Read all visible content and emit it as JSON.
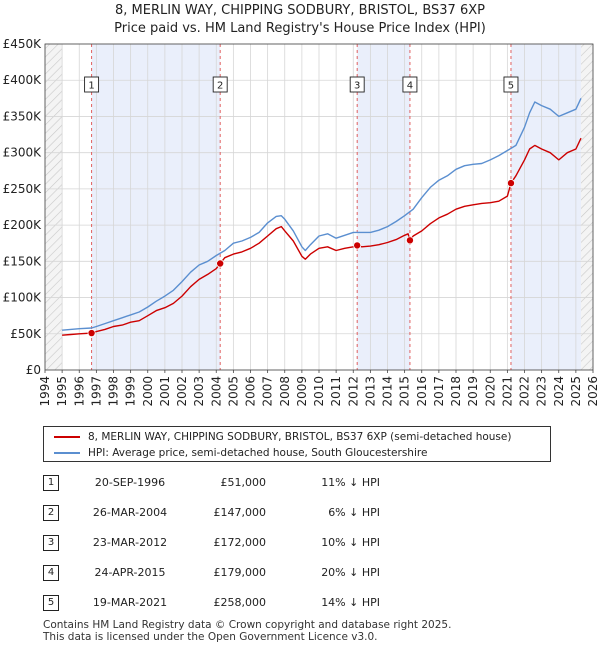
{
  "header": {
    "title": "8, MERLIN WAY, CHIPPING SODBURY, BRISTOL, BS37 6XP",
    "subtitle": "Price paid vs. HM Land Registry's House Price Index (HPI)"
  },
  "chart_data": {
    "type": "line",
    "title": "8, MERLIN WAY, CHIPPING SODBURY, BRISTOL, BS37 6XP",
    "subtitle": "Price paid vs. HM Land Registry's House Price Index (HPI)",
    "xlabel": "",
    "ylabel": "",
    "xlim": [
      1994,
      2026
    ],
    "ylim": [
      0,
      450000
    ],
    "x_ticks": [
      "1994",
      "1995",
      "1996",
      "1997",
      "1998",
      "1999",
      "2000",
      "2001",
      "2002",
      "2003",
      "2004",
      "2005",
      "2006",
      "2007",
      "2008",
      "2009",
      "2010",
      "2011",
      "2012",
      "2013",
      "2014",
      "2015",
      "2016",
      "2017",
      "2018",
      "2019",
      "2020",
      "2021",
      "2022",
      "2023",
      "2024",
      "2025",
      "2026"
    ],
    "y_ticks": [
      {
        "value": 0,
        "label": "£0"
      },
      {
        "value": 50000,
        "label": "£50K"
      },
      {
        "value": 100000,
        "label": "£100K"
      },
      {
        "value": 150000,
        "label": "£150K"
      },
      {
        "value": 200000,
        "label": "£200K"
      },
      {
        "value": 250000,
        "label": "£250K"
      },
      {
        "value": 300000,
        "label": "£300K"
      },
      {
        "value": 350000,
        "label": "£350K"
      },
      {
        "value": 400000,
        "label": "£400K"
      },
      {
        "value": 450000,
        "label": "£450K"
      }
    ],
    "grid": true,
    "data_range": [
      1995,
      2025.3
    ],
    "series": [
      {
        "name": "8, MERLIN WAY, CHIPPING SODBURY, BRISTOL, BS37 6XP (semi-detached house)",
        "color": "#cc0000",
        "x": [
          1995.0,
          1995.5,
          1996.0,
          1996.72,
          1997.0,
          1997.5,
          1998.0,
          1998.5,
          1999.0,
          1999.5,
          2000.0,
          2000.5,
          2001.0,
          2001.5,
          2002.0,
          2002.5,
          2003.0,
          2003.5,
          2004.0,
          2004.23,
          2004.5,
          2005.0,
          2005.5,
          2006.0,
          2006.5,
          2007.0,
          2007.5,
          2007.8,
          2008.0,
          2008.5,
          2009.0,
          2009.2,
          2009.5,
          2010.0,
          2010.5,
          2011.0,
          2011.5,
          2012.0,
          2012.23,
          2012.5,
          2013.0,
          2013.5,
          2014.0,
          2014.5,
          2015.0,
          2015.2,
          2015.31,
          2015.5,
          2016.0,
          2016.5,
          2017.0,
          2017.5,
          2018.0,
          2018.5,
          2019.0,
          2019.5,
          2020.0,
          2020.5,
          2021.0,
          2021.21,
          2021.5,
          2022.0,
          2022.3,
          2022.6,
          2023.0,
          2023.5,
          2024.0,
          2024.5,
          2025.0,
          2025.3
        ],
        "values": [
          48000,
          49000,
          50000,
          51000,
          53000,
          56000,
          60000,
          62000,
          66000,
          68000,
          75000,
          82000,
          86000,
          92000,
          102000,
          115000,
          125000,
          132000,
          140000,
          147000,
          155000,
          160000,
          163000,
          168000,
          175000,
          185000,
          195000,
          198000,
          192000,
          178000,
          157000,
          153000,
          160000,
          168000,
          170000,
          165000,
          168000,
          170000,
          172000,
          170000,
          171000,
          173000,
          176000,
          180000,
          186000,
          188000,
          179000,
          185000,
          192000,
          202000,
          210000,
          215000,
          222000,
          226000,
          228000,
          230000,
          231000,
          233000,
          240000,
          258000,
          268000,
          290000,
          305000,
          310000,
          305000,
          300000,
          290000,
          300000,
          305000,
          320000
        ]
      },
      {
        "name": "HPI: Average price, semi-detached house, South Gloucestershire",
        "color": "#5b8fd0",
        "x": [
          1995.0,
          1995.5,
          1996.0,
          1996.72,
          1997.0,
          1997.5,
          1998.0,
          1998.5,
          1999.0,
          1999.5,
          2000.0,
          2000.5,
          2001.0,
          2001.5,
          2002.0,
          2002.5,
          2003.0,
          2003.5,
          2004.0,
          2004.5,
          2005.0,
          2005.5,
          2006.0,
          2006.5,
          2007.0,
          2007.5,
          2007.8,
          2008.0,
          2008.5,
          2009.0,
          2009.2,
          2009.5,
          2010.0,
          2010.5,
          2011.0,
          2011.5,
          2012.0,
          2012.5,
          2013.0,
          2013.5,
          2014.0,
          2014.5,
          2015.0,
          2015.5,
          2016.0,
          2016.5,
          2017.0,
          2017.5,
          2018.0,
          2018.5,
          2019.0,
          2019.5,
          2020.0,
          2020.5,
          2021.0,
          2021.5,
          2022.0,
          2022.3,
          2022.6,
          2023.0,
          2023.5,
          2024.0,
          2024.5,
          2025.0,
          2025.3
        ],
        "values": [
          55000,
          56000,
          57000,
          58000,
          60000,
          64000,
          68000,
          72000,
          76000,
          80000,
          87000,
          95000,
          102000,
          110000,
          122000,
          135000,
          145000,
          150000,
          158000,
          165000,
          175000,
          178000,
          183000,
          190000,
          203000,
          212000,
          213000,
          208000,
          192000,
          170000,
          165000,
          173000,
          185000,
          188000,
          182000,
          186000,
          190000,
          190000,
          190000,
          193000,
          198000,
          205000,
          213000,
          222000,
          238000,
          252000,
          262000,
          268000,
          277000,
          282000,
          284000,
          285000,
          290000,
          296000,
          303000,
          310000,
          335000,
          355000,
          370000,
          365000,
          360000,
          350000,
          355000,
          360000,
          375000
        ]
      }
    ],
    "sales": [
      {
        "num": "1",
        "x": 1996.72,
        "value": 51000
      },
      {
        "num": "2",
        "x": 2004.23,
        "value": 147000
      },
      {
        "num": "3",
        "x": 2012.23,
        "value": 172000
      },
      {
        "num": "4",
        "x": 2015.31,
        "value": 179000
      },
      {
        "num": "5",
        "x": 2021.21,
        "value": 258000
      }
    ]
  },
  "legend": {
    "items": [
      {
        "label": "8, MERLIN WAY, CHIPPING SODBURY, BRISTOL, BS37 6XP (semi-detached house)",
        "color": "#cc0000"
      },
      {
        "label": "HPI: Average price, semi-detached house, South Gloucestershire",
        "color": "#5b8fd0"
      }
    ]
  },
  "transactions": [
    {
      "num": "1",
      "date": "20-SEP-1996",
      "price": "£51,000",
      "hpi": "11% ↓ HPI"
    },
    {
      "num": "2",
      "date": "26-MAR-2004",
      "price": "£147,000",
      "hpi": "6% ↓ HPI"
    },
    {
      "num": "3",
      "date": "23-MAR-2012",
      "price": "£172,000",
      "hpi": "10% ↓ HPI"
    },
    {
      "num": "4",
      "date": "24-APR-2015",
      "price": "£179,000",
      "hpi": "20% ↓ HPI"
    },
    {
      "num": "5",
      "date": "19-MAR-2021",
      "price": "£258,000",
      "hpi": "14% ↓ HPI"
    }
  ],
  "footer": {
    "line1": "Contains HM Land Registry data © Crown copyright and database right 2025.",
    "line2": "This data is licensed under the Open Government Licence v3.0."
  }
}
